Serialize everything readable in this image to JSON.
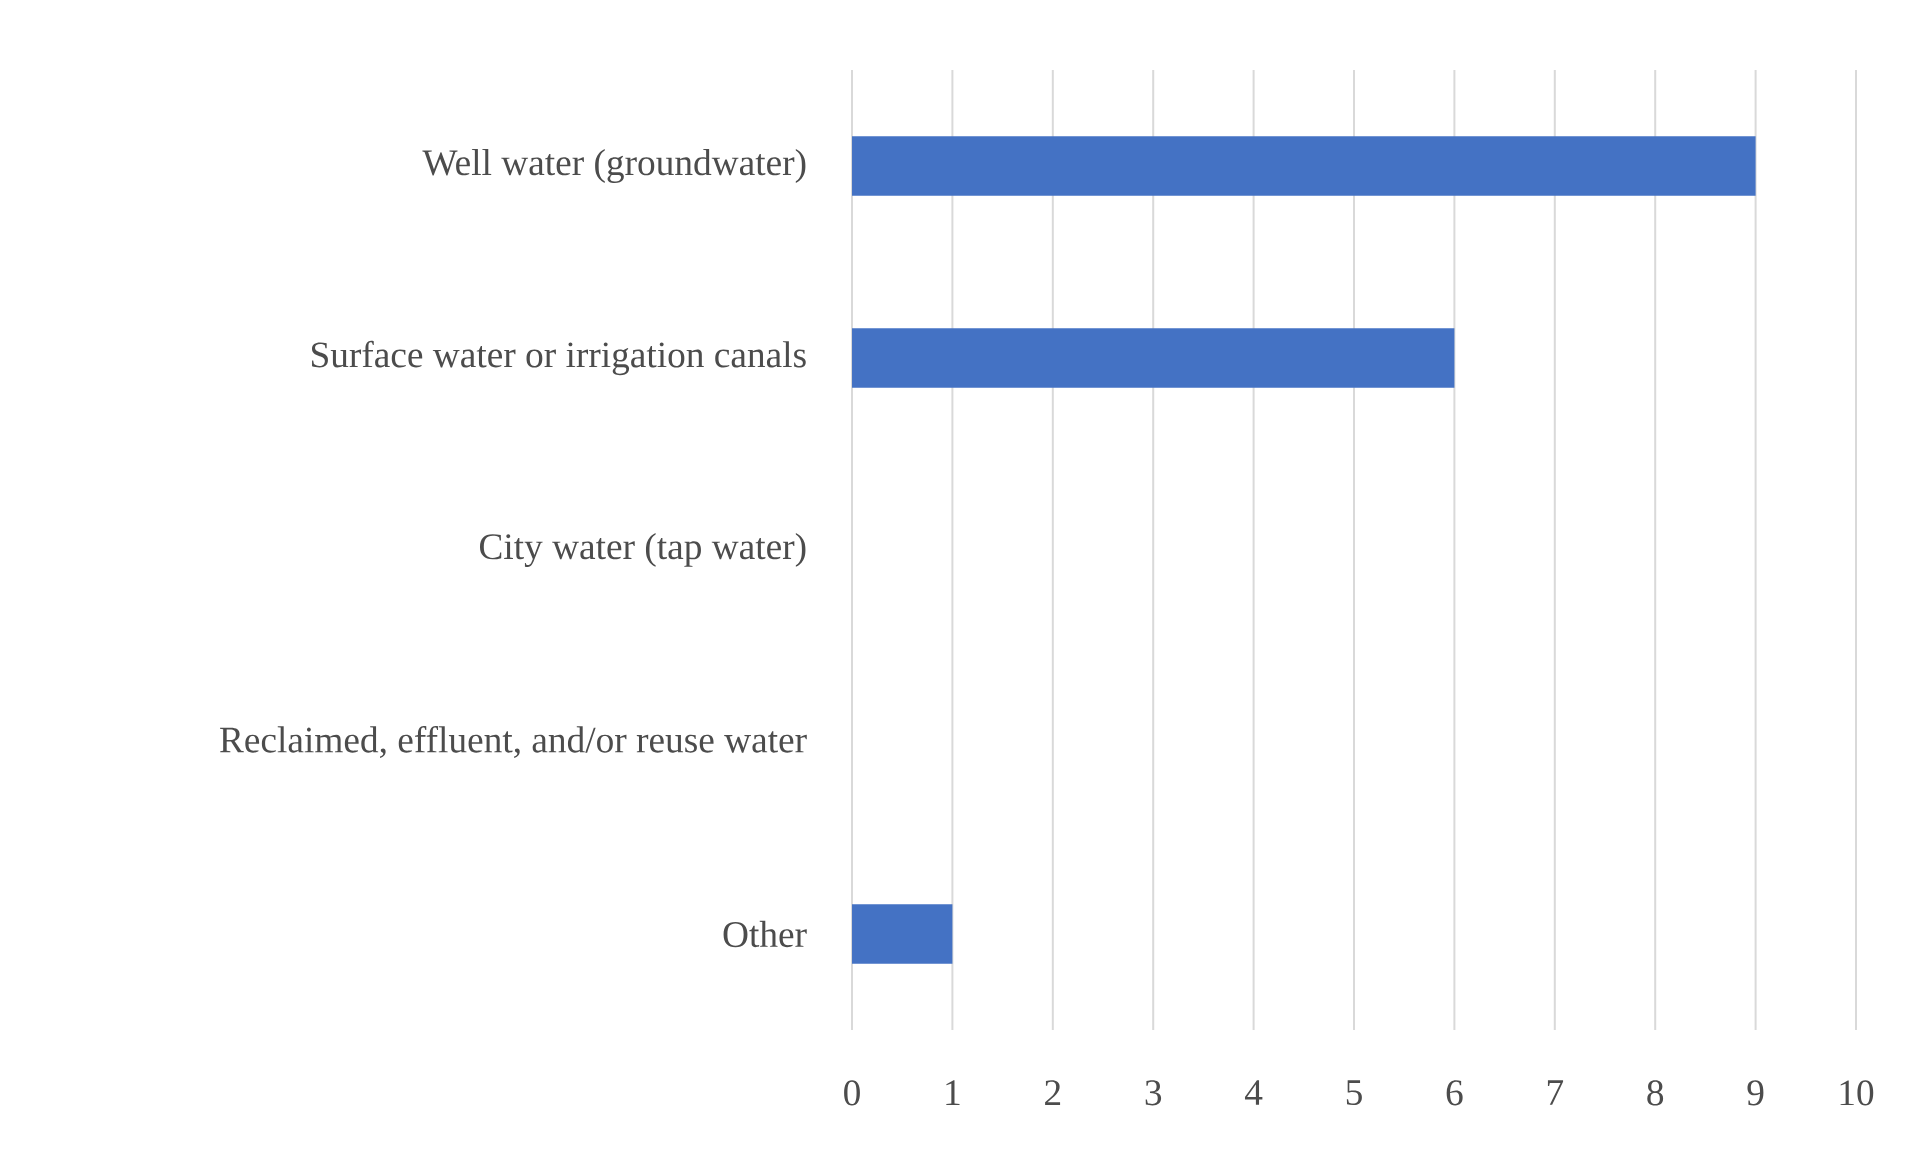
{
  "chart_data": {
    "type": "bar",
    "orientation": "horizontal",
    "categories": [
      "Well water (groundwater)",
      "Surface water or irrigation canals",
      "City water (tap water)",
      "Reclaimed, effluent, and/or reuse water",
      "Other"
    ],
    "values": [
      9,
      6,
      0,
      0,
      1
    ],
    "color": "#4472c4",
    "xlim": [
      0,
      10
    ],
    "xticks": [
      0,
      1,
      2,
      3,
      4,
      5,
      6,
      7,
      8,
      9,
      10
    ],
    "grid": "x"
  }
}
